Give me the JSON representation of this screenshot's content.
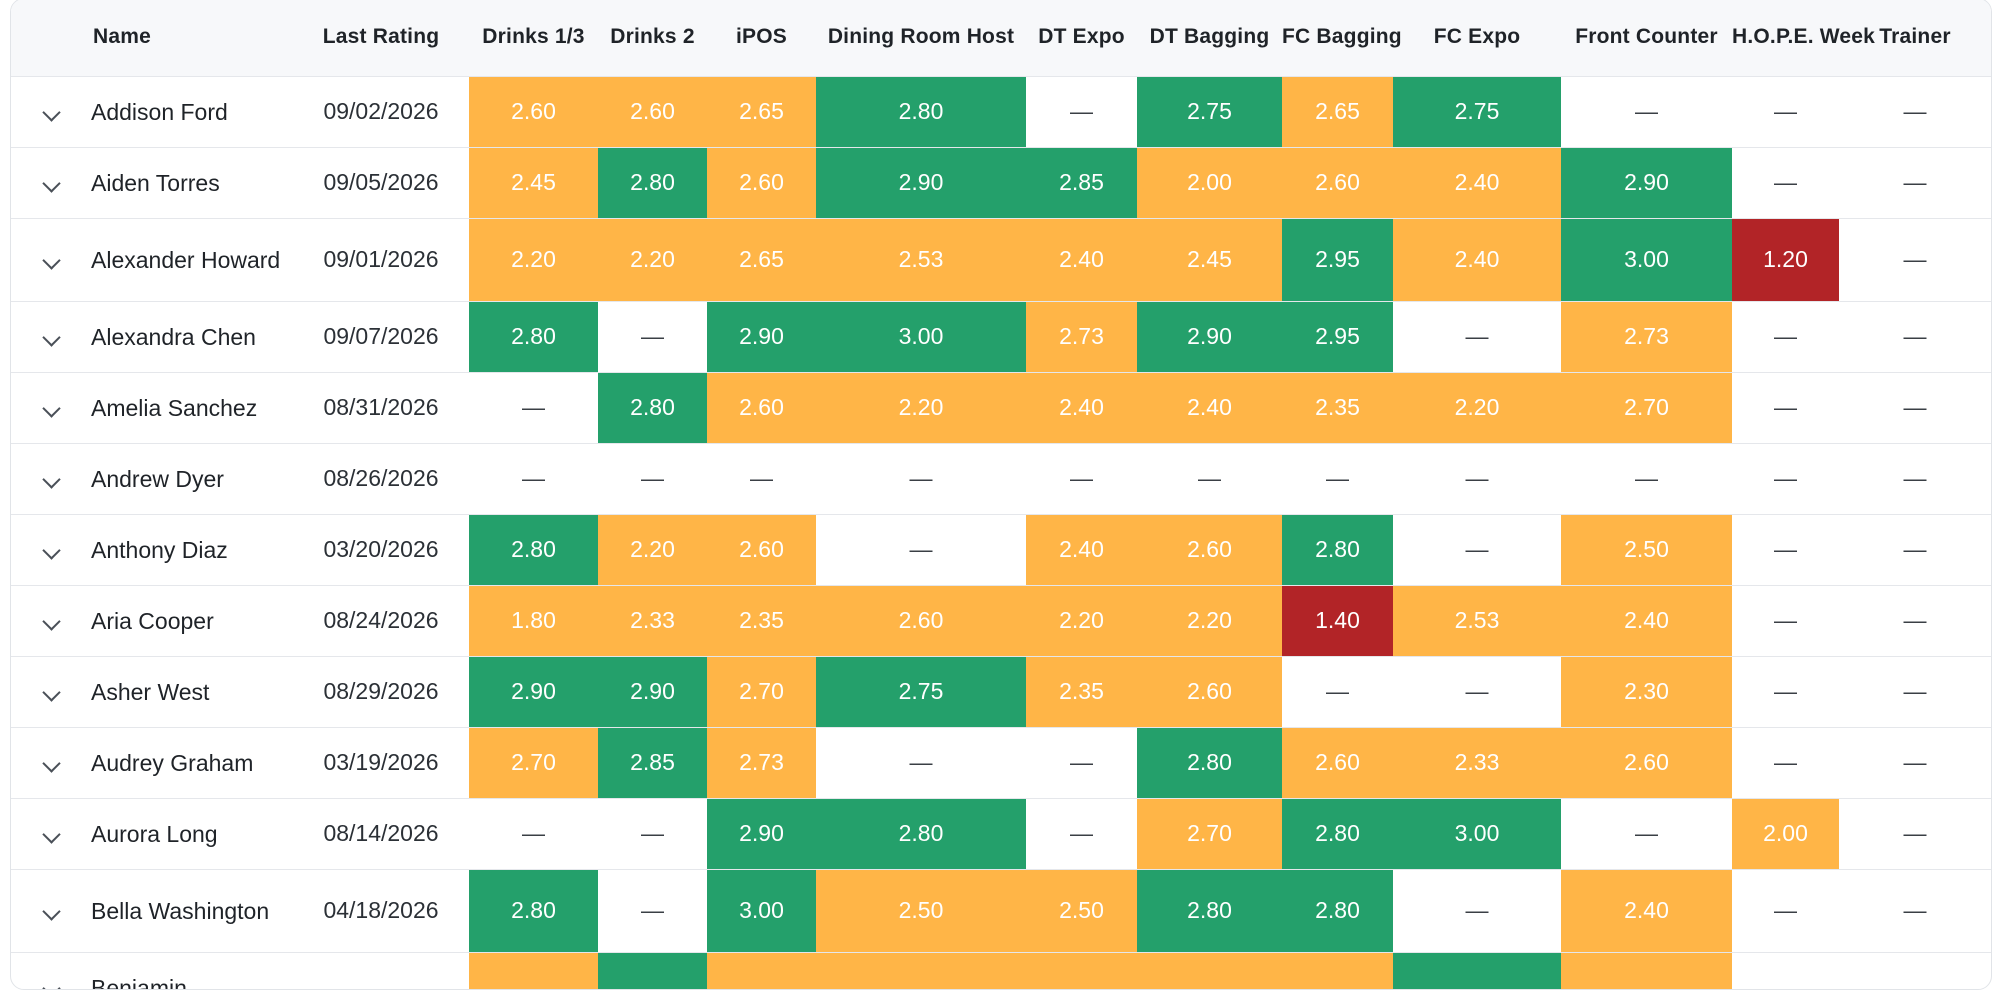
{
  "columns": [
    "Name",
    "Last Rating",
    "Drinks 1/3",
    "Drinks 2",
    "iPOS",
    "Dining Room Host",
    "DT Expo",
    "DT Bagging",
    "FC Bagging",
    "FC Expo",
    "Front Counter",
    "H.O.P.E. Week",
    "Trainer"
  ],
  "empty_symbol": "—",
  "colors": {
    "green": "#24a06b",
    "orange": "#ffb547",
    "red": "#b22427"
  },
  "rows": [
    {
      "name": "Addison Ford",
      "date": "09/02/2026",
      "cells": [
        {
          "v": "2.60",
          "c": "orange"
        },
        {
          "v": "2.60",
          "c": "orange"
        },
        {
          "v": "2.65",
          "c": "orange"
        },
        {
          "v": "2.80",
          "c": "green"
        },
        {
          "v": "—",
          "c": "none"
        },
        {
          "v": "2.75",
          "c": "green"
        },
        {
          "v": "2.65",
          "c": "orange"
        },
        {
          "v": "2.75",
          "c": "green"
        },
        {
          "v": "—",
          "c": "none"
        },
        {
          "v": "—",
          "c": "none"
        },
        {
          "v": "—",
          "c": "none"
        }
      ],
      "edge": "orange"
    },
    {
      "name": "Aiden Torres",
      "date": "09/05/2026",
      "cells": [
        {
          "v": "2.45",
          "c": "orange"
        },
        {
          "v": "2.80",
          "c": "green"
        },
        {
          "v": "2.60",
          "c": "orange"
        },
        {
          "v": "2.90",
          "c": "green"
        },
        {
          "v": "2.85",
          "c": "green"
        },
        {
          "v": "2.00",
          "c": "orange"
        },
        {
          "v": "2.60",
          "c": "orange"
        },
        {
          "v": "2.40",
          "c": "orange"
        },
        {
          "v": "2.90",
          "c": "green"
        },
        {
          "v": "—",
          "c": "none"
        },
        {
          "v": "—",
          "c": "none"
        }
      ],
      "edge": "none"
    },
    {
      "name": "Alexander Howard",
      "date": "09/01/2026",
      "cells": [
        {
          "v": "2.20",
          "c": "orange"
        },
        {
          "v": "2.20",
          "c": "orange"
        },
        {
          "v": "2.65",
          "c": "orange"
        },
        {
          "v": "2.53",
          "c": "orange"
        },
        {
          "v": "2.40",
          "c": "orange"
        },
        {
          "v": "2.45",
          "c": "orange"
        },
        {
          "v": "2.95",
          "c": "green"
        },
        {
          "v": "2.40",
          "c": "orange"
        },
        {
          "v": "3.00",
          "c": "green"
        },
        {
          "v": "1.20",
          "c": "red"
        },
        {
          "v": "—",
          "c": "none"
        }
      ],
      "edge": "none"
    },
    {
      "name": "Alexandra Chen",
      "date": "09/07/2026",
      "cells": [
        {
          "v": "2.80",
          "c": "green"
        },
        {
          "v": "—",
          "c": "none"
        },
        {
          "v": "2.90",
          "c": "green"
        },
        {
          "v": "3.00",
          "c": "green"
        },
        {
          "v": "2.73",
          "c": "orange"
        },
        {
          "v": "2.90",
          "c": "green"
        },
        {
          "v": "2.95",
          "c": "green"
        },
        {
          "v": "—",
          "c": "none"
        },
        {
          "v": "2.73",
          "c": "orange"
        },
        {
          "v": "—",
          "c": "none"
        },
        {
          "v": "—",
          "c": "none"
        }
      ],
      "edge": "green"
    },
    {
      "name": "Amelia Sanchez",
      "date": "08/31/2026",
      "cells": [
        {
          "v": "—",
          "c": "none"
        },
        {
          "v": "2.80",
          "c": "green"
        },
        {
          "v": "2.60",
          "c": "orange"
        },
        {
          "v": "2.20",
          "c": "orange"
        },
        {
          "v": "2.40",
          "c": "orange"
        },
        {
          "v": "2.40",
          "c": "orange"
        },
        {
          "v": "2.35",
          "c": "orange"
        },
        {
          "v": "2.20",
          "c": "orange"
        },
        {
          "v": "2.70",
          "c": "orange"
        },
        {
          "v": "—",
          "c": "none"
        },
        {
          "v": "—",
          "c": "none"
        }
      ],
      "edge": "none"
    },
    {
      "name": "Andrew Dyer",
      "date": "08/26/2026",
      "cells": [
        {
          "v": "—",
          "c": "none"
        },
        {
          "v": "—",
          "c": "none"
        },
        {
          "v": "—",
          "c": "none"
        },
        {
          "v": "—",
          "c": "none"
        },
        {
          "v": "—",
          "c": "none"
        },
        {
          "v": "—",
          "c": "none"
        },
        {
          "v": "—",
          "c": "none"
        },
        {
          "v": "—",
          "c": "none"
        },
        {
          "v": "—",
          "c": "none"
        },
        {
          "v": "—",
          "c": "none"
        },
        {
          "v": "—",
          "c": "none"
        }
      ],
      "edge": "orange"
    },
    {
      "name": "Anthony Diaz",
      "date": "03/20/2026",
      "cells": [
        {
          "v": "2.80",
          "c": "green"
        },
        {
          "v": "2.20",
          "c": "orange"
        },
        {
          "v": "2.60",
          "c": "orange"
        },
        {
          "v": "—",
          "c": "none"
        },
        {
          "v": "2.40",
          "c": "orange"
        },
        {
          "v": "2.60",
          "c": "orange"
        },
        {
          "v": "2.80",
          "c": "green"
        },
        {
          "v": "—",
          "c": "none"
        },
        {
          "v": "2.50",
          "c": "orange"
        },
        {
          "v": "—",
          "c": "none"
        },
        {
          "v": "—",
          "c": "none"
        }
      ],
      "edge": "none"
    },
    {
      "name": "Aria Cooper",
      "date": "08/24/2026",
      "cells": [
        {
          "v": "1.80",
          "c": "orange"
        },
        {
          "v": "2.33",
          "c": "orange"
        },
        {
          "v": "2.35",
          "c": "orange"
        },
        {
          "v": "2.60",
          "c": "orange"
        },
        {
          "v": "2.20",
          "c": "orange"
        },
        {
          "v": "2.20",
          "c": "orange"
        },
        {
          "v": "1.40",
          "c": "red"
        },
        {
          "v": "2.53",
          "c": "orange"
        },
        {
          "v": "2.40",
          "c": "orange"
        },
        {
          "v": "—",
          "c": "none"
        },
        {
          "v": "—",
          "c": "none"
        }
      ],
      "edge": "none"
    },
    {
      "name": "Asher West",
      "date": "08/29/2026",
      "cells": [
        {
          "v": "2.90",
          "c": "green"
        },
        {
          "v": "2.90",
          "c": "green"
        },
        {
          "v": "2.70",
          "c": "orange"
        },
        {
          "v": "2.75",
          "c": "green"
        },
        {
          "v": "2.35",
          "c": "orange"
        },
        {
          "v": "2.60",
          "c": "orange"
        },
        {
          "v": "—",
          "c": "none"
        },
        {
          "v": "—",
          "c": "none"
        },
        {
          "v": "2.30",
          "c": "orange"
        },
        {
          "v": "—",
          "c": "none"
        },
        {
          "v": "—",
          "c": "none"
        }
      ],
      "edge": "none"
    },
    {
      "name": "Audrey Graham",
      "date": "03/19/2026",
      "cells": [
        {
          "v": "2.70",
          "c": "orange"
        },
        {
          "v": "2.85",
          "c": "green"
        },
        {
          "v": "2.73",
          "c": "orange"
        },
        {
          "v": "—",
          "c": "none"
        },
        {
          "v": "—",
          "c": "none"
        },
        {
          "v": "2.80",
          "c": "green"
        },
        {
          "v": "2.60",
          "c": "orange"
        },
        {
          "v": "2.33",
          "c": "orange"
        },
        {
          "v": "2.60",
          "c": "orange"
        },
        {
          "v": "—",
          "c": "none"
        },
        {
          "v": "—",
          "c": "none"
        }
      ],
      "edge": "none"
    },
    {
      "name": "Aurora Long",
      "date": "08/14/2026",
      "cells": [
        {
          "v": "—",
          "c": "none"
        },
        {
          "v": "—",
          "c": "none"
        },
        {
          "v": "2.90",
          "c": "green"
        },
        {
          "v": "2.80",
          "c": "green"
        },
        {
          "v": "—",
          "c": "none"
        },
        {
          "v": "2.70",
          "c": "orange"
        },
        {
          "v": "2.80",
          "c": "green"
        },
        {
          "v": "3.00",
          "c": "green"
        },
        {
          "v": "—",
          "c": "none"
        },
        {
          "v": "2.00",
          "c": "orange"
        },
        {
          "v": "—",
          "c": "none"
        }
      ],
      "edge": "none"
    },
    {
      "name": "Bella Washington",
      "date": "04/18/2026",
      "cells": [
        {
          "v": "2.80",
          "c": "green"
        },
        {
          "v": "—",
          "c": "none"
        },
        {
          "v": "3.00",
          "c": "green"
        },
        {
          "v": "2.50",
          "c": "orange"
        },
        {
          "v": "2.50",
          "c": "orange"
        },
        {
          "v": "2.80",
          "c": "green"
        },
        {
          "v": "2.80",
          "c": "green"
        },
        {
          "v": "—",
          "c": "none"
        },
        {
          "v": "2.40",
          "c": "orange"
        },
        {
          "v": "—",
          "c": "none"
        },
        {
          "v": "—",
          "c": "none"
        }
      ],
      "edge": "none"
    },
    {
      "name": "Benjamin",
      "date": "",
      "cells": [
        {
          "v": "",
          "c": "orange"
        },
        {
          "v": "",
          "c": "green"
        },
        {
          "v": "",
          "c": "orange"
        },
        {
          "v": "",
          "c": "orange"
        },
        {
          "v": "",
          "c": "orange"
        },
        {
          "v": "",
          "c": "orange"
        },
        {
          "v": "",
          "c": "orange"
        },
        {
          "v": "",
          "c": "green"
        },
        {
          "v": "",
          "c": "orange"
        },
        {
          "v": "",
          "c": "none"
        },
        {
          "v": "",
          "c": "none"
        }
      ],
      "edge": "none"
    }
  ]
}
